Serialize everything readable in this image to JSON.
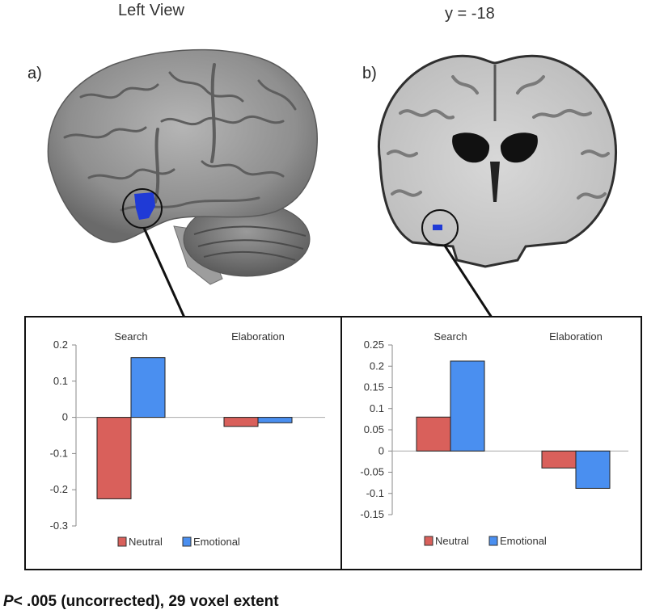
{
  "figure": {
    "panels": [
      {
        "label": "a)",
        "view_title": "Left View"
      },
      {
        "label": "b)",
        "view_title": "y = -18"
      }
    ],
    "footnote": {
      "p_symbol": "P",
      "rest": "< .005 (uncorrected), 29 voxel extent"
    },
    "colors": {
      "neutral": "#d9605b",
      "emotional": "#4a8ff0",
      "roi": "#1f3ad6",
      "outline": "#111111"
    }
  },
  "chart_data": [
    {
      "type": "bar",
      "categories": [
        "Search",
        "Elaboration"
      ],
      "series": [
        {
          "name": "Neutral",
          "values": [
            -0.225,
            -0.025
          ]
        },
        {
          "name": "Emotional",
          "values": [
            0.165,
            -0.015
          ]
        }
      ],
      "yticks": [
        "0.2",
        "0.1",
        "0",
        "-0.1",
        "-0.2",
        "-0.3"
      ],
      "ylim": [
        -0.3,
        0.2
      ],
      "legend": "bottom",
      "grid": false
    },
    {
      "type": "bar",
      "categories": [
        "Search",
        "Elaboration"
      ],
      "series": [
        {
          "name": "Neutral",
          "values": [
            0.08,
            -0.04
          ]
        },
        {
          "name": "Emotional",
          "values": [
            0.212,
            -0.088
          ]
        }
      ],
      "yticks": [
        "0.25",
        "0.2",
        "0.15",
        "0.1",
        "0.05",
        "0",
        "-0.05",
        "-0.1",
        "-0.15"
      ],
      "ylim": [
        -0.15,
        0.25
      ],
      "legend": "bottom",
      "grid": false
    }
  ]
}
